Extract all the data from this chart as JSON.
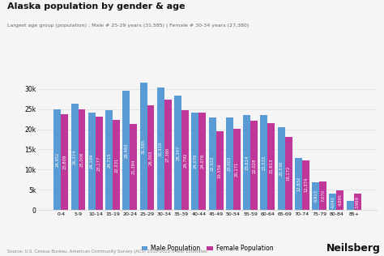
{
  "title": "Alaska population by gender & age",
  "subtitle": "Largest age group (population) : Male # 25-29 years (31,585) | Female # 30-34 years (27,380)",
  "categories": [
    "0-4",
    "5-9",
    "10-14",
    "15-19",
    "20-24",
    "25-29",
    "30-34",
    "35-39",
    "40-44",
    "45-49",
    "50-54",
    "55-59",
    "60-64",
    "65-69",
    "70-74",
    "75-79",
    "80-84",
    "85+"
  ],
  "male": [
    24952,
    26374,
    24199,
    24715,
    29483,
    31585,
    30319,
    28347,
    24076,
    22922,
    23003,
    23614,
    23533,
    20536,
    12832,
    6913,
    4042,
    2190
  ],
  "female": [
    23809,
    25006,
    23177,
    22231,
    21394,
    26003,
    27380,
    24792,
    24076,
    19556,
    20171,
    22028,
    21613,
    18172,
    12374,
    7070,
    4895,
    3969
  ],
  "male_color": "#5b9bd5",
  "female_color": "#c0379a",
  "bg_color": "#f5f5f5",
  "source": "Source: U.S. Census Bureau, American Community Survey (ACS) 2018-2022 5-Year Estimates",
  "ylim": [
    0,
    33000
  ],
  "bar_label_fontsize": 3.8,
  "legend_labels": [
    "Male Population",
    "Female Population"
  ]
}
